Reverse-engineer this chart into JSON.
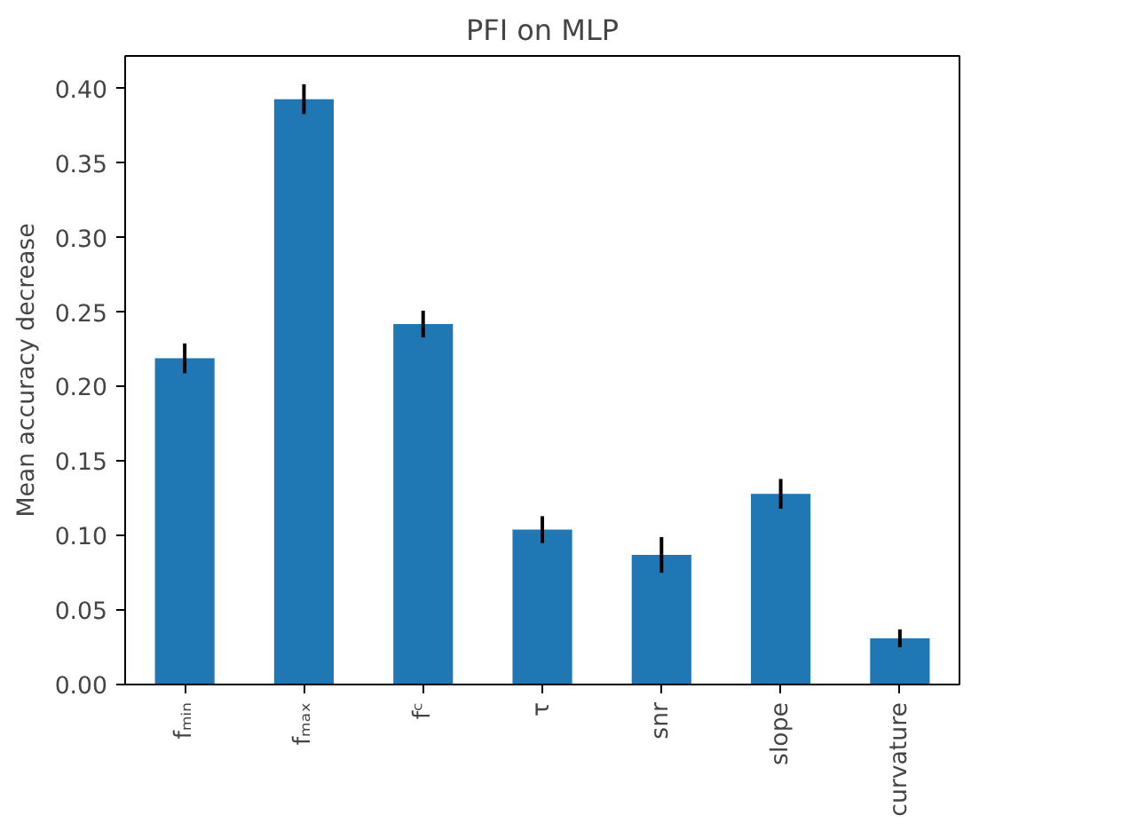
{
  "chart_data": {
    "type": "bar",
    "title": "PFI on MLP",
    "ylabel": "Mean accuracy decrease",
    "categories": [
      "fₘᵢₙ",
      "fₘₐₓ",
      "fᶜ",
      "τ",
      "snr",
      "slope",
      "curvature"
    ],
    "values": [
      0.219,
      0.393,
      0.242,
      0.104,
      0.087,
      0.128,
      0.031
    ],
    "errors": [
      0.01,
      0.01,
      0.009,
      0.009,
      0.012,
      0.01,
      0.006
    ],
    "color": "#1f77b4",
    "ylim": [
      0,
      0.422
    ],
    "yticks": [
      {
        "value": 0,
        "label": "0.00"
      },
      {
        "value": 0.05,
        "label": "0.05"
      },
      {
        "value": 0.1,
        "label": "0.10"
      },
      {
        "value": 0.15,
        "label": "0.15"
      },
      {
        "value": 0.2,
        "label": "0.20"
      },
      {
        "value": 0.25,
        "label": "0.25"
      },
      {
        "value": 0.3,
        "label": "0.30"
      },
      {
        "value": 0.35,
        "label": "0.35"
      },
      {
        "value": 0.4,
        "label": "0.40"
      }
    ],
    "grid": false
  }
}
